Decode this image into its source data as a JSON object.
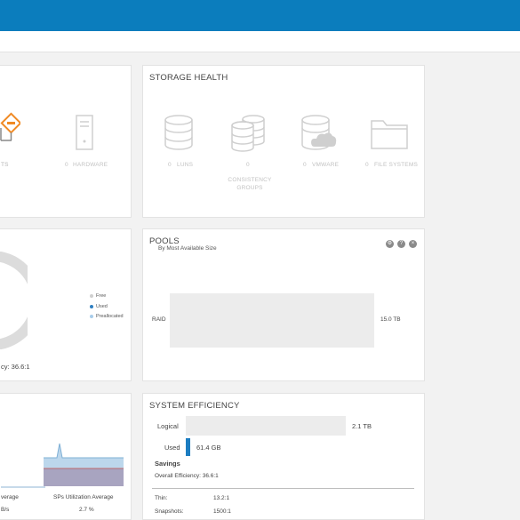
{
  "alerts_panel": {
    "alerts_label": "TS",
    "hardware_count": "0",
    "hardware_label": "HARDWARE"
  },
  "storage_health": {
    "title": "STORAGE HEALTH",
    "items": [
      {
        "count": "0",
        "label": "LUNS",
        "icon": "database-icon"
      },
      {
        "count": "0",
        "label": "CONSISTENCY GROUPS",
        "icon": "multi-database-icon"
      },
      {
        "count": "0",
        "label": "VMWARE",
        "icon": "cloud-database-icon"
      },
      {
        "count": "0",
        "label": "FILE SYSTEMS",
        "icon": "folder-icon"
      }
    ]
  },
  "capacity_panel": {
    "legend": [
      {
        "label": "Free",
        "color": "#cfcfcf"
      },
      {
        "label": "Used",
        "color": "#2f7fc1"
      },
      {
        "label": "Preallocated",
        "color": "#a9cdea"
      }
    ],
    "efficiency_text": "cy: 36.6:1"
  },
  "pools": {
    "title": "POOLS",
    "subtitle": "By Most Available Size",
    "rows": [
      {
        "name": "RAID",
        "value": "15.0 TB"
      }
    ]
  },
  "performance_panel": {
    "left_label": "verage",
    "left_value": "B/s",
    "right_label": "SPs Utilization Average",
    "right_value": "2.7 %"
  },
  "system_efficiency": {
    "title": "SYSTEM EFFICIENCY",
    "logical_label": "Logical",
    "logical_value": "2.1 TB",
    "used_label": "Used",
    "used_value": "61.4 GB",
    "used_fraction": 0.03,
    "savings_label": "Savings",
    "overall_label": "Overall Efficiency: 36.6:1",
    "thin_label": "Thin:",
    "thin_value": "13.2:1",
    "snapshots_label": "Snapshots:",
    "snapshots_value": "1500:1"
  }
}
